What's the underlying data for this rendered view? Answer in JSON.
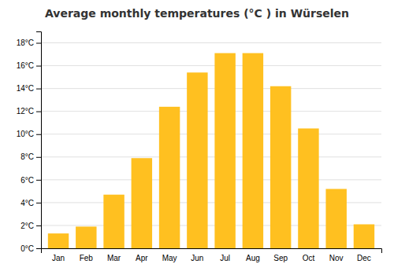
{
  "chart_data": {
    "type": "bar",
    "title": "Average monthly temperatures (°C ) in Würselen",
    "categories": [
      "Jan",
      "Feb",
      "Mar",
      "Apr",
      "May",
      "Jun",
      "Jul",
      "Aug",
      "Sep",
      "Oct",
      "Nov",
      "Dec"
    ],
    "values": [
      1.3,
      1.9,
      4.7,
      7.9,
      12.4,
      15.4,
      17.1,
      17.1,
      14.2,
      10.5,
      5.2,
      2.1
    ],
    "color": "#FFC020",
    "ylim": [
      0,
      19
    ],
    "yticks": [
      {
        "value": 0,
        "label": "0°C"
      },
      {
        "value": 2,
        "label": "2°C"
      },
      {
        "value": 4,
        "label": "4°C"
      },
      {
        "value": 6,
        "label": "6°C"
      },
      {
        "value": 8,
        "label": "8°C"
      },
      {
        "value": 10,
        "label": "10°C"
      },
      {
        "value": 12,
        "label": "12°C"
      },
      {
        "value": 14,
        "label": "14°C"
      },
      {
        "value": 16,
        "label": "16°C"
      },
      {
        "value": 18,
        "label": "18°C"
      }
    ],
    "grid": true
  }
}
